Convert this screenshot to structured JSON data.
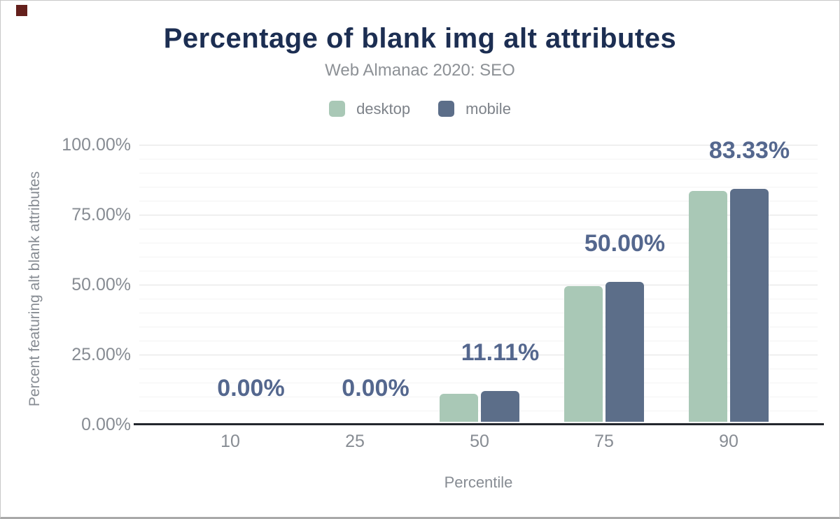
{
  "chart_data": {
    "type": "bar",
    "title": "Percentage of blank img alt attributes",
    "subtitle": "Web Almanac 2020: SEO",
    "xlabel": "Percentile",
    "ylabel": "Percent featuring alt blank attributes",
    "categories": [
      "10",
      "25",
      "50",
      "75",
      "90"
    ],
    "series": [
      {
        "name": "desktop",
        "color": "#a9c8b6",
        "values": [
          0,
          0,
          10.0,
          48.6,
          82.5
        ]
      },
      {
        "name": "mobile",
        "color": "#5c6e89",
        "values": [
          0,
          0,
          11.11,
          50.0,
          83.33
        ]
      }
    ],
    "data_labels": [
      "0.00%",
      "0.00%",
      "11.11%",
      "50.00%",
      "83.33%"
    ],
    "data_labels_series": "mobile",
    "yticks": [
      "0.00%",
      "25.00%",
      "50.00%",
      "75.00%",
      "100.00%"
    ],
    "ylim": [
      0,
      100
    ],
    "grid": {
      "minor_every": 5,
      "major_every": 25
    },
    "legend_position": "top"
  },
  "theme": {
    "title": "#1c2e52",
    "subtitle_text": "#8d9196",
    "legend_text": "#7d8289",
    "tick_text": "#878c93",
    "axis_line": "#23272d",
    "grid_major": "#e2e2e2",
    "grid_minor": "#f3f3f3",
    "data_label": "#54678e",
    "frame_border": "#c8c8c8",
    "frame_border_bottom": "#a9a9a9",
    "corner_marker": "#64201c"
  }
}
